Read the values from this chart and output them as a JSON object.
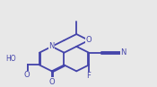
{
  "bg_color": "#e8e8e8",
  "line_color": "#4444aa",
  "text_color": "#4444aa",
  "bond_lw": 1.3,
  "fig_width": 1.75,
  "fig_height": 0.97,
  "dpi": 100,
  "xlim": [
    -1.5,
    11.5
  ],
  "ylim": [
    -1.2,
    8.5
  ]
}
